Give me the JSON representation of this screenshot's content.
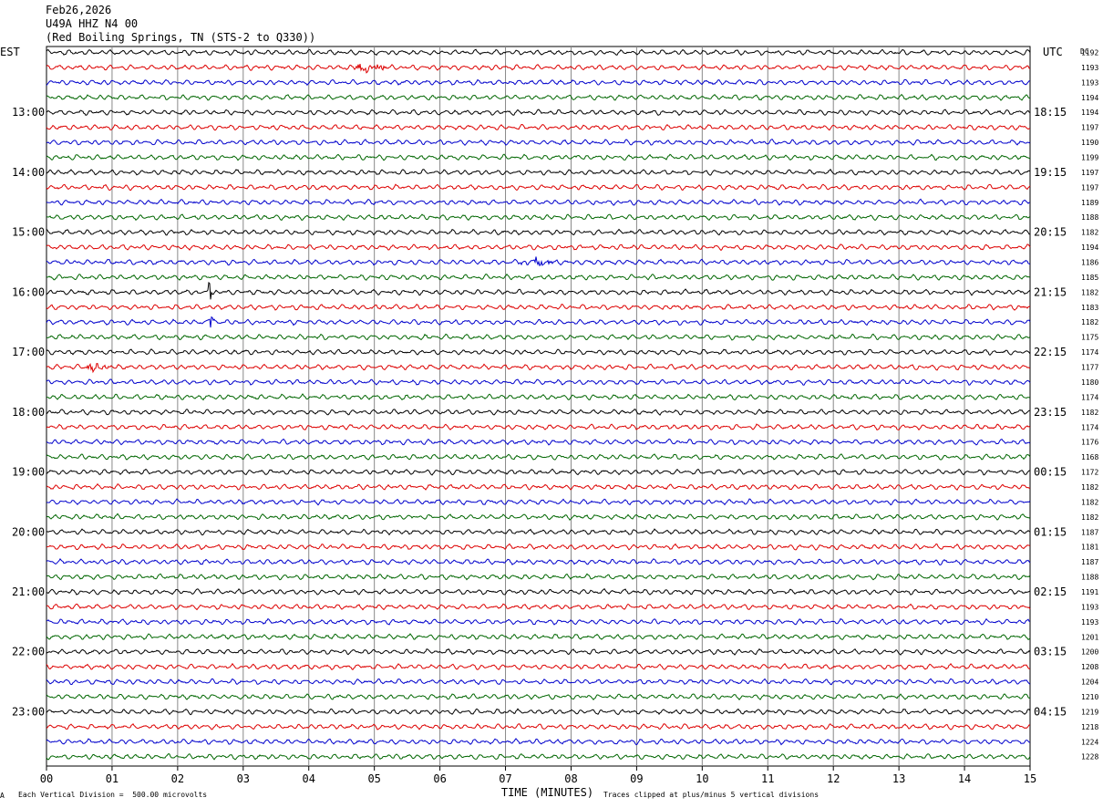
{
  "header": {
    "date": "Feb26,2026",
    "station": "U49A HHZ N4 00",
    "location": "(Red Boiling Springs, TN (STS-2 to Q330))"
  },
  "labels": {
    "left_tz": "EST",
    "right_tz": "UTC",
    "dc": "DC",
    "xlabel": "TIME (MINUTES)",
    "scale_note": "Each Vertical Division =  500.00 microvolts",
    "clip_note": "Traces clipped at plus/minus 5 vertical divisions",
    "corner_mark": "A"
  },
  "chart_data": {
    "type": "line",
    "title": "U49A HHZ N4 00",
    "xlabel": "TIME (MINUTES)",
    "xlim": [
      0,
      15
    ],
    "x_ticks": [
      "00",
      "01",
      "02",
      "03",
      "04",
      "05",
      "06",
      "07",
      "08",
      "09",
      "10",
      "11",
      "12",
      "13",
      "14",
      "15"
    ],
    "trace_count": 48,
    "trace_colors": [
      "#000000",
      "#dd0000",
      "#0000cc",
      "#006600"
    ],
    "left_hour_labels": [
      "13:00",
      "14:00",
      "15:00",
      "16:00",
      "17:00",
      "18:00",
      "19:00",
      "20:00",
      "21:00",
      "22:00",
      "23:00"
    ],
    "right_hour_labels": [
      "18:15",
      "19:15",
      "20:15",
      "21:15",
      "22:15",
      "23:15",
      "00:15",
      "01:15",
      "02:15",
      "03:15",
      "04:15"
    ],
    "dc_offsets": [
      "1192",
      "1193",
      "1193",
      "1194",
      "1194",
      "1197",
      "1190",
      "1199",
      "1197",
      "1197",
      "1189",
      "1188",
      "1182",
      "1194",
      "1186",
      "1185",
      "1182",
      "1183",
      "1182",
      "1175",
      "1174",
      "1177",
      "1180",
      "1174",
      "1182",
      "1174",
      "1176",
      "1168",
      "1172",
      "1182",
      "1182",
      "1182",
      "1187",
      "1181",
      "1187",
      "1188",
      "1191",
      "1193",
      "1193",
      "1201",
      "1200",
      "1208",
      "1204",
      "1210",
      "1219",
      "1218",
      "1224",
      "1228"
    ],
    "events": [
      {
        "trace": 1,
        "minute_start": 4.65,
        "minute_end": 5.4,
        "amplitude": 4
      },
      {
        "trace": 14,
        "minute_start": 7.2,
        "minute_end": 7.9,
        "amplitude": 3.5
      },
      {
        "trace": 16,
        "minute_start": 2.45,
        "minute_end": 2.55,
        "amplitude": 9
      },
      {
        "trace": 18,
        "minute_start": 2.45,
        "minute_end": 2.6,
        "amplitude": 7
      },
      {
        "trace": 21,
        "minute_start": 0.55,
        "minute_end": 1.1,
        "amplitude": 4
      }
    ]
  }
}
